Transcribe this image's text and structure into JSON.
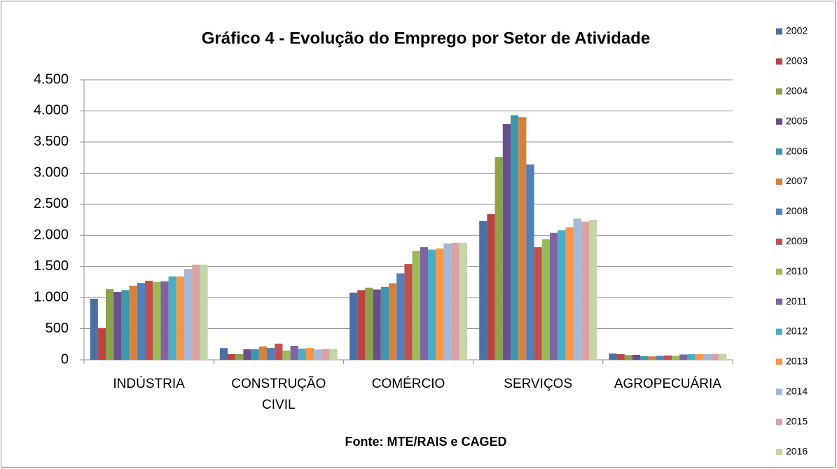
{
  "chart_data": {
    "type": "bar",
    "title": "Gráfico 4 - Evolução do Emprego por Setor de Atividade",
    "source": "Fonte: MTE/RAIS e CAGED",
    "categories": [
      "INDÚSTRIA",
      "CONSTRUÇÃO CIVIL",
      "COMÉRCIO",
      "SERVIÇOS",
      "AGROPECUÁRIA"
    ],
    "series": [
      {
        "name": "2002",
        "color": "#4a6fa5",
        "values": [
          980,
          188,
          1080,
          2230,
          100
        ]
      },
      {
        "name": "2003",
        "color": "#b94441",
        "values": [
          510,
          90,
          1120,
          2340,
          90
        ]
      },
      {
        "name": "2004",
        "color": "#8ba14a",
        "values": [
          1135,
          90,
          1160,
          3260,
          75
        ]
      },
      {
        "name": "2005",
        "color": "#6a4f8e",
        "values": [
          1090,
          170,
          1130,
          3790,
          80
        ]
      },
      {
        "name": "2006",
        "color": "#3e97ab",
        "values": [
          1120,
          170,
          1170,
          3930,
          60
        ]
      },
      {
        "name": "2007",
        "color": "#d5813e",
        "values": [
          1190,
          215,
          1230,
          3900,
          55
        ]
      },
      {
        "name": "2008",
        "color": "#4f81bd",
        "values": [
          1235,
          190,
          1390,
          3140,
          65
        ]
      },
      {
        "name": "2009",
        "color": "#c0504d",
        "values": [
          1270,
          260,
          1540,
          1810,
          70
        ]
      },
      {
        "name": "2010",
        "color": "#9bbb59",
        "values": [
          1250,
          150,
          1750,
          1940,
          65
        ]
      },
      {
        "name": "2011",
        "color": "#8064a2",
        "values": [
          1260,
          225,
          1810,
          2040,
          85
        ]
      },
      {
        "name": "2012",
        "color": "#4bacc6",
        "values": [
          1340,
          180,
          1770,
          2080,
          90
        ]
      },
      {
        "name": "2013",
        "color": "#f79646",
        "values": [
          1340,
          190,
          1790,
          2130,
          90
        ]
      },
      {
        "name": "2014",
        "color": "#a5b8d8",
        "values": [
          1460,
          165,
          1870,
          2270,
          90
        ]
      },
      {
        "name": "2015",
        "color": "#d9a3a3",
        "values": [
          1530,
          175,
          1880,
          2220,
          95
        ]
      },
      {
        "name": "2016",
        "color": "#c3d6a4",
        "values": [
          1530,
          175,
          1880,
          2250,
          95
        ]
      }
    ],
    "ylim": [
      0,
      4500
    ],
    "yticks": [
      0,
      {
        "value": 500,
        "label": "500"
      },
      {
        "value": 1000,
        "label": "1.000"
      },
      {
        "value": 1500,
        "label": "1.500"
      },
      {
        "value": 2000,
        "label": "2.000"
      },
      {
        "value": 2500,
        "label": "2.500"
      },
      {
        "value": 3000,
        "label": "3.000"
      },
      {
        "value": 3500,
        "label": "3.500"
      },
      {
        "value": 4000,
        "label": "4.000"
      },
      {
        "value": 4500,
        "label": "4.500"
      }
    ],
    "grid": true,
    "legend": "right"
  }
}
